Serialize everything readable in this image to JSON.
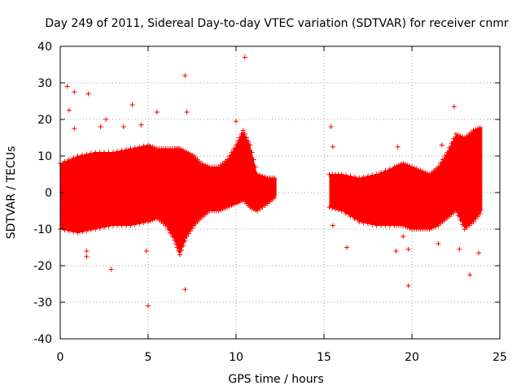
{
  "chart_data": {
    "type": "scatter",
    "title": "Day 249 of 2011, Sidereal Day-to-day VTEC variation (SDTVAR) for receiver cnmr",
    "xlabel": "GPS time / hours",
    "ylabel": "SDTVAR / TECUs",
    "xlim": [
      0,
      25
    ],
    "ylim": [
      -40,
      40
    ],
    "xticks": [
      "0",
      "5",
      "10",
      "15",
      "20",
      "25"
    ],
    "yticks": [
      "-40",
      "-30",
      "-20",
      "-10",
      "0",
      "10",
      "20",
      "30",
      "40"
    ],
    "grid": true,
    "marker": "+",
    "color": "#ff0000",
    "series": [
      {
        "name": "SDTVAR",
        "envelope": [
          {
            "x": 0.0,
            "low": -10,
            "high": 8
          },
          {
            "x": 1.0,
            "low": -11,
            "high": 10
          },
          {
            "x": 2.0,
            "low": -10,
            "high": 11
          },
          {
            "x": 3.0,
            "low": -9,
            "high": 11
          },
          {
            "x": 4.0,
            "low": -9,
            "high": 12
          },
          {
            "x": 5.0,
            "low": -8,
            "high": 13
          },
          {
            "x": 5.5,
            "low": -7,
            "high": 12
          },
          {
            "x": 6.0,
            "low": -9,
            "high": 12
          },
          {
            "x": 6.5,
            "low": -13,
            "high": 12
          },
          {
            "x": 6.8,
            "low": -17,
            "high": 12
          },
          {
            "x": 7.2,
            "low": -12,
            "high": 11
          },
          {
            "x": 7.6,
            "low": -9,
            "high": 10
          },
          {
            "x": 8.0,
            "low": -7,
            "high": 8
          },
          {
            "x": 8.5,
            "low": -5,
            "high": 7
          },
          {
            "x": 9.0,
            "low": -5,
            "high": 7
          },
          {
            "x": 9.5,
            "low": -4,
            "high": 9
          },
          {
            "x": 10.0,
            "low": -3,
            "high": 13
          },
          {
            "x": 10.4,
            "low": -2,
            "high": 17
          },
          {
            "x": 10.8,
            "low": -4,
            "high": 13
          },
          {
            "x": 11.2,
            "low": -5,
            "high": 5
          },
          {
            "x": 11.8,
            "low": -3,
            "high": 4
          },
          {
            "x": 12.3,
            "low": -1,
            "high": 4
          }
        ],
        "envelope2": [
          {
            "x": 15.3,
            "low": -4,
            "high": 5
          },
          {
            "x": 16.0,
            "low": -5,
            "high": 5
          },
          {
            "x": 17.0,
            "low": -8,
            "high": 4
          },
          {
            "x": 18.0,
            "low": -9,
            "high": 5
          },
          {
            "x": 19.0,
            "low": -9,
            "high": 7
          },
          {
            "x": 19.5,
            "low": -9,
            "high": 8
          },
          {
            "x": 20.0,
            "low": -10,
            "high": 7
          },
          {
            "x": 20.5,
            "low": -10,
            "high": 6
          },
          {
            "x": 21.0,
            "low": -10,
            "high": 5
          },
          {
            "x": 21.5,
            "low": -9,
            "high": 7
          },
          {
            "x": 22.0,
            "low": -7,
            "high": 11
          },
          {
            "x": 22.5,
            "low": -5,
            "high": 16
          },
          {
            "x": 23.0,
            "low": -10,
            "high": 15
          },
          {
            "x": 23.5,
            "low": -8,
            "high": 17
          },
          {
            "x": 24.0,
            "low": -5,
            "high": 18
          }
        ],
        "outliers": [
          {
            "x": 0.4,
            "y": 29.0
          },
          {
            "x": 0.8,
            "y": 27.5
          },
          {
            "x": 1.6,
            "y": 27.0
          },
          {
            "x": 0.5,
            "y": 22.5
          },
          {
            "x": 0.8,
            "y": 17.5
          },
          {
            "x": 2.3,
            "y": 18.0
          },
          {
            "x": 2.6,
            "y": 20.0
          },
          {
            "x": 4.1,
            "y": 24.0
          },
          {
            "x": 3.6,
            "y": 18.0
          },
          {
            "x": 4.6,
            "y": 18.5
          },
          {
            "x": 5.5,
            "y": 22.0
          },
          {
            "x": 7.1,
            "y": 32.0
          },
          {
            "x": 7.2,
            "y": 22.0
          },
          {
            "x": 10.5,
            "y": 37.0
          },
          {
            "x": 10.0,
            "y": 19.5
          },
          {
            "x": 1.5,
            "y": -16.0
          },
          {
            "x": 1.5,
            "y": -17.5
          },
          {
            "x": 2.9,
            "y": -21.0
          },
          {
            "x": 4.9,
            "y": -16.0
          },
          {
            "x": 5.0,
            "y": -31.0
          },
          {
            "x": 7.1,
            "y": -26.5
          },
          {
            "x": 15.4,
            "y": 18.0
          },
          {
            "x": 15.5,
            "y": 12.5
          },
          {
            "x": 15.5,
            "y": -9.0
          },
          {
            "x": 16.3,
            "y": -15.0
          },
          {
            "x": 19.1,
            "y": -16.0
          },
          {
            "x": 19.5,
            "y": -12.0
          },
          {
            "x": 19.8,
            "y": -15.5
          },
          {
            "x": 19.8,
            "y": -25.5
          },
          {
            "x": 19.2,
            "y": 12.5
          },
          {
            "x": 21.5,
            "y": -14.0
          },
          {
            "x": 21.7,
            "y": 13.0
          },
          {
            "x": 22.4,
            "y": 23.5
          },
          {
            "x": 23.3,
            "y": -22.5
          },
          {
            "x": 23.8,
            "y": -16.5
          },
          {
            "x": 22.7,
            "y": -15.5
          }
        ]
      }
    ]
  }
}
